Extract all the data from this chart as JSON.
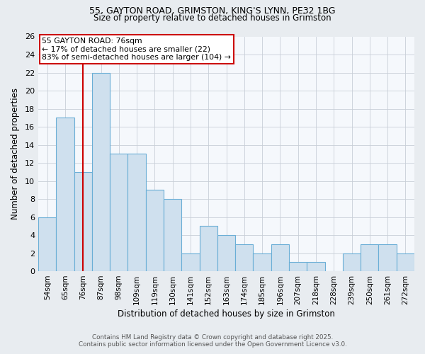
{
  "title1": "55, GAYTON ROAD, GRIMSTON, KING'S LYNN, PE32 1BG",
  "title2": "Size of property relative to detached houses in Grimston",
  "xlabel": "Distribution of detached houses by size in Grimston",
  "ylabel": "Number of detached properties",
  "categories": [
    "54sqm",
    "65sqm",
    "76sqm",
    "87sqm",
    "98sqm",
    "109sqm",
    "119sqm",
    "130sqm",
    "141sqm",
    "152sqm",
    "163sqm",
    "174sqm",
    "185sqm",
    "196sqm",
    "207sqm",
    "218sqm",
    "228sqm",
    "239sqm",
    "250sqm",
    "261sqm",
    "272sqm"
  ],
  "values": [
    6,
    17,
    11,
    22,
    13,
    13,
    9,
    8,
    2,
    5,
    4,
    3,
    2,
    3,
    1,
    1,
    0,
    2,
    3,
    3,
    2
  ],
  "bar_color": "#cfe0ee",
  "bar_edge_color": "#6aaed6",
  "highlight_index": 2,
  "highlight_color": "#cc0000",
  "ylim": [
    0,
    26
  ],
  "yticks": [
    0,
    2,
    4,
    6,
    8,
    10,
    12,
    14,
    16,
    18,
    20,
    22,
    24,
    26
  ],
  "annotation_title": "55 GAYTON ROAD: 76sqm",
  "annotation_line1": "← 17% of detached houses are smaller (22)",
  "annotation_line2": "83% of semi-detached houses are larger (104) →",
  "annotation_box_color": "#cc0000",
  "footer1": "Contains HM Land Registry data © Crown copyright and database right 2025.",
  "footer2": "Contains public sector information licensed under the Open Government Licence v3.0.",
  "bg_color": "#e8ecf0",
  "plot_bg_color": "#f5f8fc",
  "grid_color": "#c8cfd8"
}
